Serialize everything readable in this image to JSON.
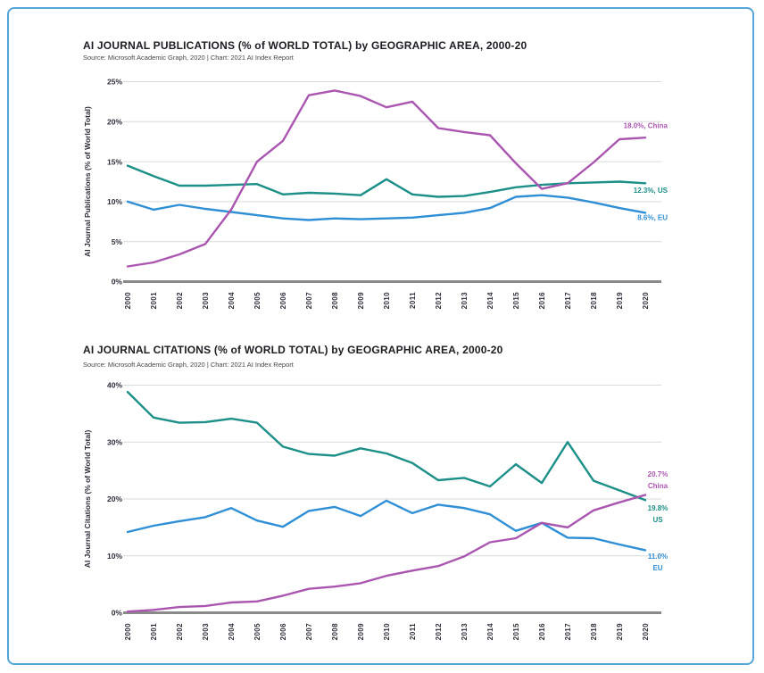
{
  "colors": {
    "page_border": "#54a5da",
    "china": "#aa56b0",
    "us": "#1b8f88",
    "eu": "#2f8fd6",
    "gridline": "#dadada",
    "axis_line": "#8a8a8a"
  },
  "charts": [
    {
      "title": "AI JOURNAL PUBLICATIONS (% of WORLD TOTAL) by GEOGRAPHIC AREA, 2000-20",
      "source": "Source: Microsoft Academic Graph, 2020 | Chart: 2021 AI Index Report",
      "y_axis_label": "AI Journal Publications (% of World Total)",
      "y_ticks": [
        {
          "value": 0,
          "label": "0%"
        },
        {
          "value": 5,
          "label": "5%"
        },
        {
          "value": 10,
          "label": "10%"
        },
        {
          "value": 15,
          "label": "15%"
        },
        {
          "value": 20,
          "label": "20%"
        },
        {
          "value": 25,
          "label": "25%"
        }
      ],
      "years": [
        "2000",
        "2001",
        "2002",
        "2003",
        "2004",
        "2005",
        "2006",
        "2007",
        "2008",
        "2009",
        "2010",
        "2011",
        "2012",
        "2013",
        "2014",
        "2015",
        "2016",
        "2017",
        "2018",
        "2019",
        "2020"
      ],
      "series": [
        {
          "name": "US",
          "color": "#1b8f88",
          "values": [
            14.5,
            13.2,
            12.0,
            12.0,
            12.1,
            12.2,
            10.9,
            11.1,
            11.0,
            10.8,
            12.8,
            10.9,
            10.6,
            10.7,
            11.2,
            11.8,
            12.1,
            12.3,
            12.4,
            12.5,
            12.3
          ],
          "annotation": {
            "lines": [
              "12.3%, US"
            ],
            "y": 11.1
          }
        },
        {
          "name": "EU",
          "color": "#2f8fd6",
          "values": [
            10.0,
            9.0,
            9.6,
            9.1,
            8.7,
            8.3,
            7.9,
            7.7,
            7.9,
            7.8,
            7.9,
            8.0,
            8.3,
            8.6,
            9.2,
            10.6,
            10.8,
            10.5,
            9.9,
            9.2,
            8.6
          ],
          "annotation": {
            "lines": [
              "8.6%, EU"
            ],
            "y": 7.7
          }
        },
        {
          "name": "China",
          "color": "#aa56b0",
          "values": [
            1.9,
            2.4,
            3.4,
            4.7,
            9.0,
            15.0,
            17.6,
            23.3,
            23.9,
            23.2,
            21.8,
            22.5,
            19.2,
            18.7,
            18.3,
            14.8,
            11.6,
            12.3,
            14.9,
            17.8,
            18.0
          ],
          "annotation": {
            "lines": [
              "18.0%, China"
            ],
            "y": 19.2
          }
        }
      ]
    },
    {
      "title": "AI JOURNAL CITATIONS (% of WORLD TOTAL) by GEOGRAPHIC AREA, 2000-20",
      "source": "Source: Microsoft Academic Graph, 2020 | Chart: 2021 AI Index Report",
      "y_axis_label": "AI Journal Citations (% of World Total)",
      "y_ticks": [
        {
          "value": 0,
          "label": "0%"
        },
        {
          "value": 10,
          "label": "10%"
        },
        {
          "value": 20,
          "label": "20%"
        },
        {
          "value": 30,
          "label": "30%"
        },
        {
          "value": 40,
          "label": "40%"
        }
      ],
      "years": [
        "2000",
        "2001",
        "2002",
        "2003",
        "2004",
        "2005",
        "2006",
        "2007",
        "2008",
        "2009",
        "2010",
        "2011",
        "2012",
        "2013",
        "2014",
        "2015",
        "2016",
        "2017",
        "2018",
        "2019",
        "2020"
      ],
      "series": [
        {
          "name": "US",
          "color": "#1b8f88",
          "values": [
            38.8,
            34.3,
            33.4,
            33.5,
            34.1,
            33.4,
            29.2,
            27.9,
            27.6,
            28.9,
            28.0,
            26.3,
            23.3,
            23.7,
            22.2,
            26.1,
            22.8,
            30.0,
            23.2,
            21.5,
            19.8
          ],
          "annotation": {
            "lines": [
              "19.8%",
              "US"
            ],
            "y": 18.0
          }
        },
        {
          "name": "EU",
          "color": "#2f8fd6",
          "values": [
            14.2,
            15.3,
            16.1,
            16.8,
            18.4,
            16.2,
            15.1,
            17.9,
            18.6,
            17.0,
            19.7,
            17.5,
            19.0,
            18.4,
            17.3,
            14.4,
            15.8,
            13.2,
            13.1,
            12.0,
            11.0
          ],
          "annotation": {
            "lines": [
              "11.0%",
              "EU"
            ],
            "y": 9.5
          }
        },
        {
          "name": "China",
          "color": "#aa56b0",
          "values": [
            0.2,
            0.5,
            1.0,
            1.2,
            1.8,
            2.0,
            3.0,
            4.2,
            4.6,
            5.2,
            6.5,
            7.4,
            8.2,
            9.9,
            12.4,
            13.1,
            15.8,
            15.0,
            18.0,
            19.4,
            20.7
          ],
          "annotation": {
            "lines": [
              "20.7%",
              "China"
            ],
            "y": 23.9
          }
        }
      ]
    }
  ]
}
